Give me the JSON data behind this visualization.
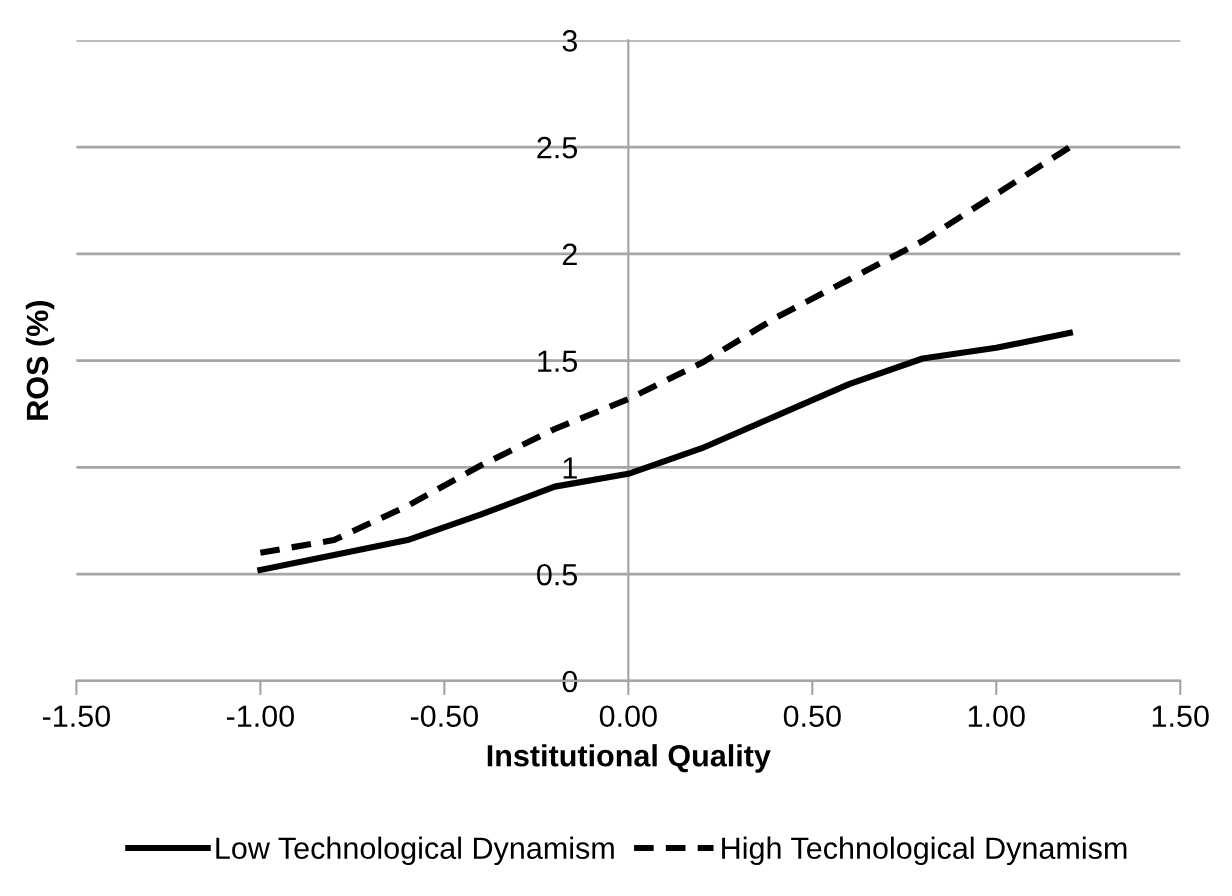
{
  "chart_data": {
    "type": "line",
    "xlabel": "Institutional Quality",
    "ylabel": "ROS (%)",
    "x": [
      -1.0,
      -0.8,
      -0.6,
      -0.4,
      -0.2,
      0.0,
      0.2,
      0.4,
      0.6,
      0.8,
      1.0,
      1.2
    ],
    "series": [
      {
        "name": "Low Technological Dynamism",
        "color": "#000000",
        "line_style": "solid",
        "values": [
          0.52,
          0.59,
          0.66,
          0.78,
          0.91,
          0.97,
          1.09,
          1.24,
          1.39,
          1.51,
          1.56,
          1.63
        ]
      },
      {
        "name": "High Technological Dynamism",
        "color": "#000000",
        "line_style": "dashed",
        "values": [
          0.6,
          0.66,
          0.82,
          1.01,
          1.18,
          1.32,
          1.49,
          1.7,
          1.88,
          2.06,
          2.28,
          2.5
        ]
      }
    ],
    "xlim": [
      -1.5,
      1.5
    ],
    "xticks": [
      {
        "value": -1.5,
        "label": "-1.50"
      },
      {
        "value": -1.0,
        "label": "-1.00"
      },
      {
        "value": -0.5,
        "label": "-0.50"
      },
      {
        "value": 0,
        "label": "0.00"
      },
      {
        "value": 0.5,
        "label": "0.50"
      },
      {
        "value": 1.0,
        "label": "1.00"
      },
      {
        "value": 1.5,
        "label": "1.50"
      }
    ],
    "ylim": [
      0,
      3
    ],
    "yticks": [
      0,
      0.5,
      1,
      1.5,
      2,
      2.5,
      3
    ],
    "grid": "y",
    "legend": "bottom",
    "marker": "none"
  }
}
